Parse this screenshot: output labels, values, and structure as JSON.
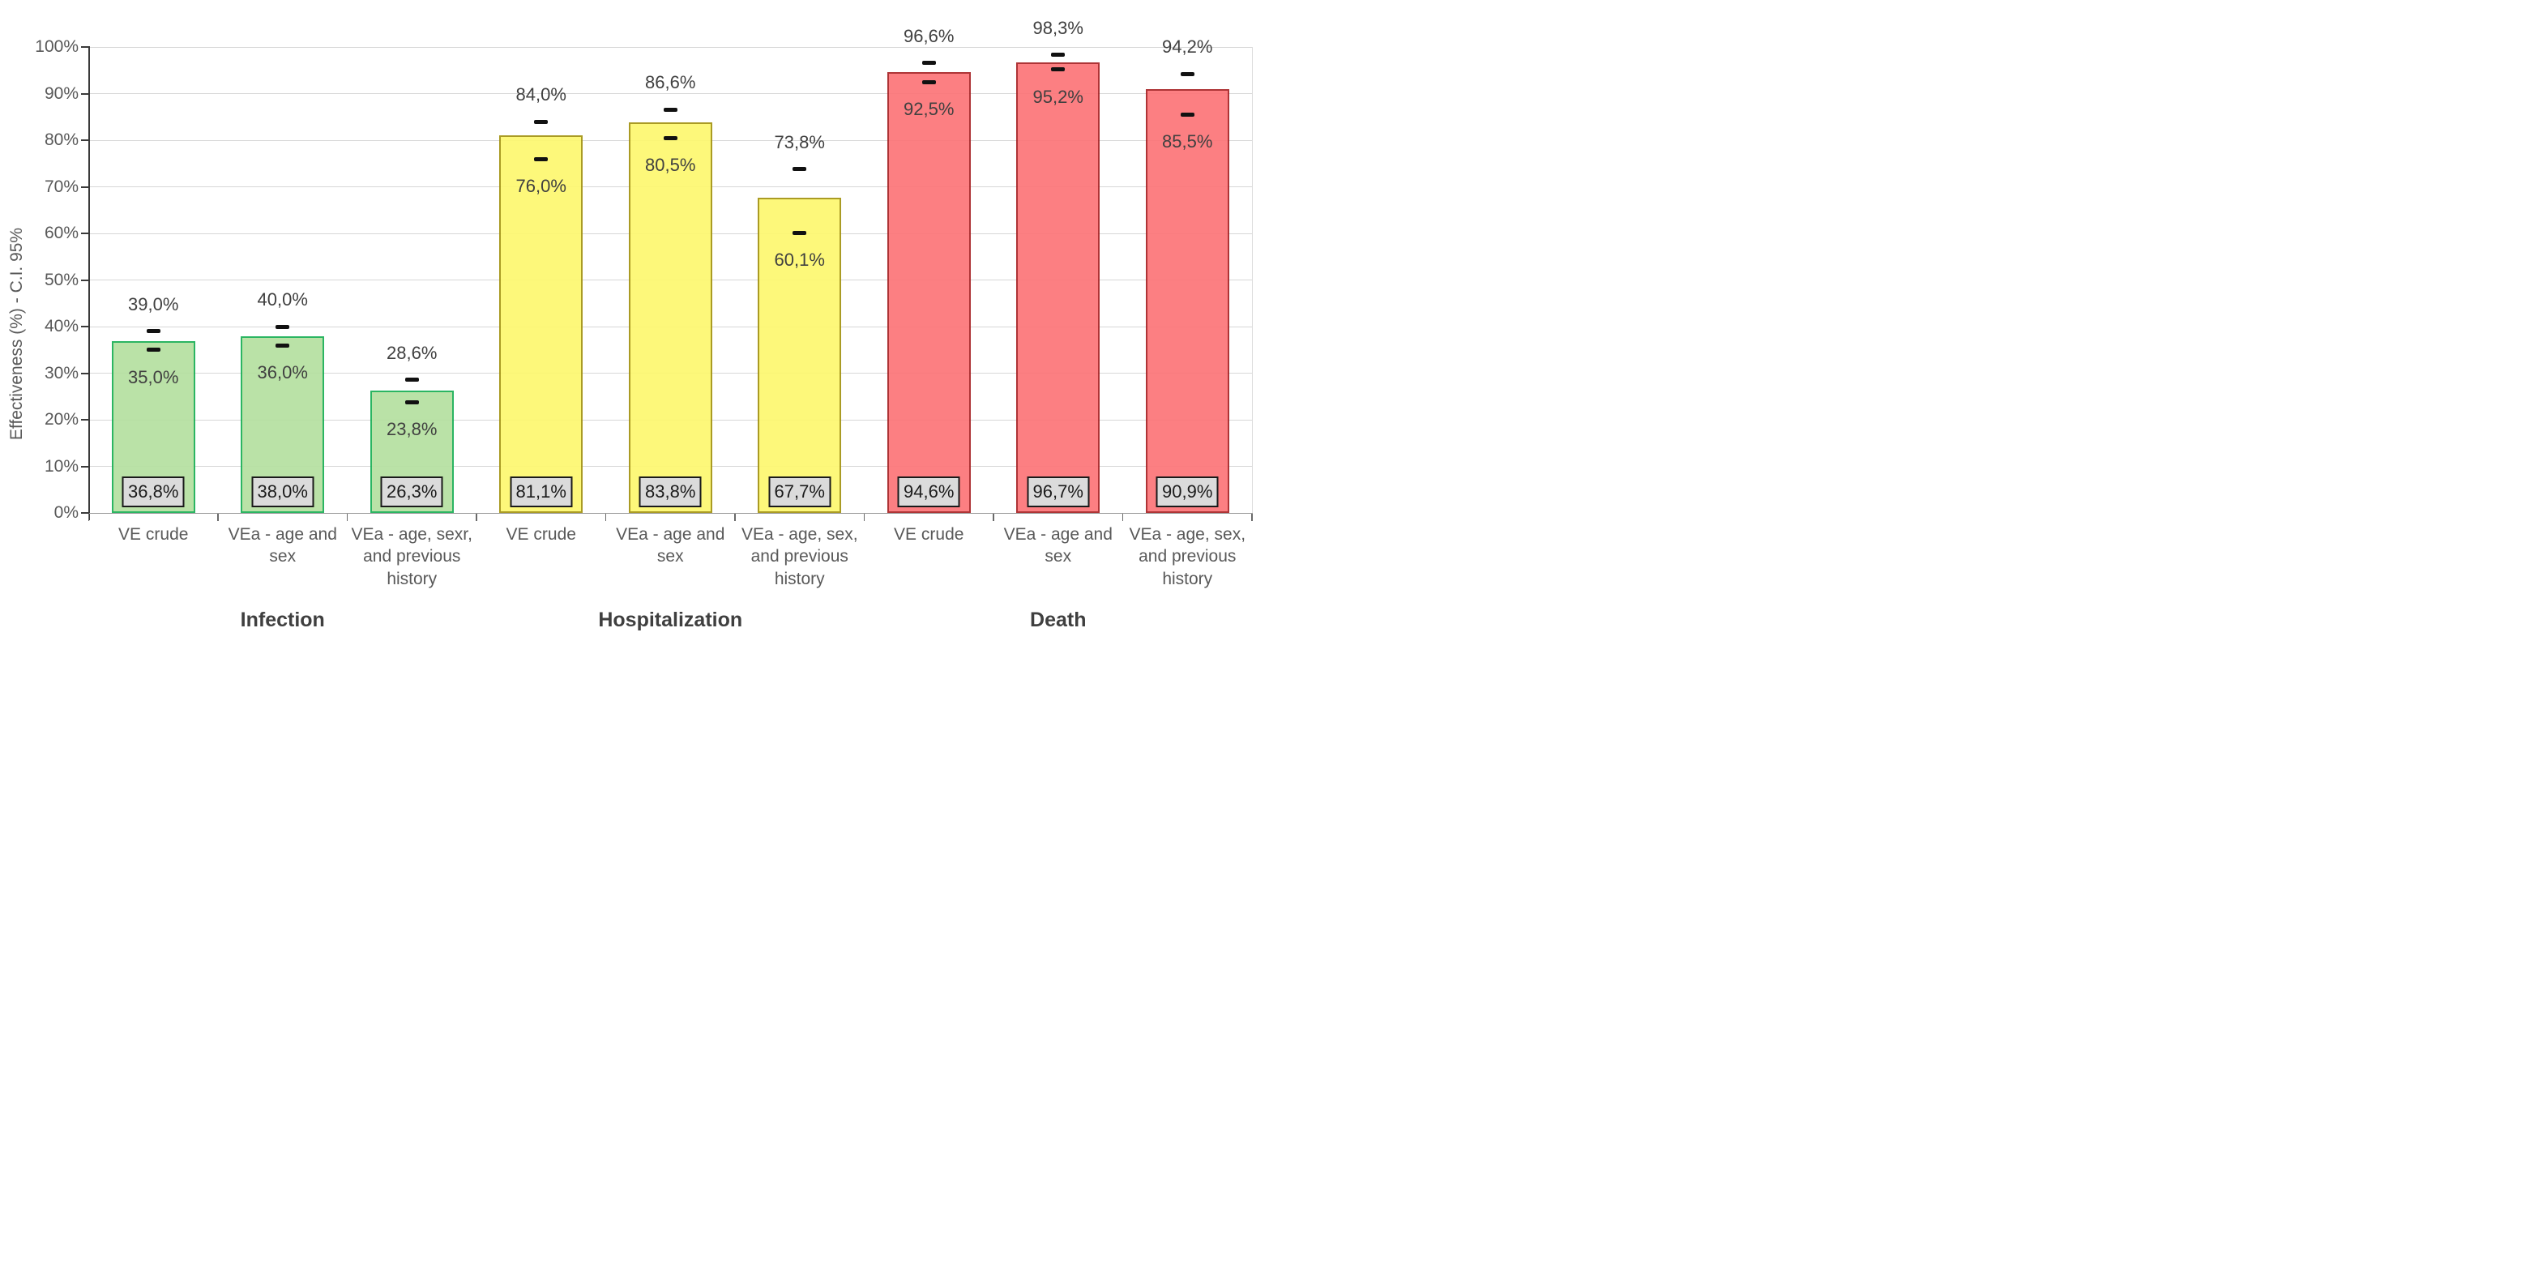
{
  "chart_data": {
    "type": "bar",
    "title": "",
    "ylabel": "Effectiveness (%) - C.I. 95%",
    "ylim": [
      0,
      100
    ],
    "ytick_step": 10,
    "grid": true,
    "legend": "none",
    "decimal_separator": ",",
    "error_bars": "95% confidence interval dashes above and below each bar top",
    "y_ticks": [
      {
        "value": 0,
        "label": "0%"
      },
      {
        "value": 10,
        "label": "10%"
      },
      {
        "value": 20,
        "label": "20%"
      },
      {
        "value": 30,
        "label": "30%"
      },
      {
        "value": 40,
        "label": "40%"
      },
      {
        "value": 50,
        "label": "50%"
      },
      {
        "value": 60,
        "label": "60%"
      },
      {
        "value": 70,
        "label": "70%"
      },
      {
        "value": 80,
        "label": "80%"
      },
      {
        "value": 90,
        "label": "90%"
      },
      {
        "value": 100,
        "label": "100%"
      }
    ],
    "colors": {
      "gridline": "#d7d7d7",
      "ci_marker": "#111111",
      "value_box_fill": "#dbdbdb",
      "value_box_border": "#1a1a1a",
      "axis_text": "#595959",
      "ci_label_text": "#404040",
      "group_label_text": "#3f3f3f"
    },
    "groups": [
      {
        "label": "Infection",
        "fill": "#b5e0a0",
        "border": "#1aaf55",
        "bars": [
          {
            "category": "VE crude",
            "value": 36.8,
            "ci_low": 35.0,
            "ci_high": 39.0,
            "value_label": "36,8%",
            "ci_low_label": "35,0%",
            "ci_high_label": "39,0%"
          },
          {
            "category": "VEa - age and\nsex",
            "value": 38.0,
            "ci_low": 36.0,
            "ci_high": 40.0,
            "value_label": "38,0%",
            "ci_low_label": "36,0%",
            "ci_high_label": "40,0%"
          },
          {
            "category": "VEa - age, sexr,\nand previous\nhistory",
            "value": 26.3,
            "ci_low": 23.8,
            "ci_high": 28.6,
            "value_label": "26,3%",
            "ci_low_label": "23,8%",
            "ci_high_label": "28,6%"
          }
        ]
      },
      {
        "label": "Hospitalization",
        "fill": "#fdf86f",
        "border": "#a39312",
        "bars": [
          {
            "category": "VE crude",
            "value": 81.1,
            "ci_low": 76.0,
            "ci_high": 84.0,
            "value_label": "81,1%",
            "ci_low_label": "76,0%",
            "ci_high_label": "84,0%"
          },
          {
            "category": "VEa - age and\nsex",
            "value": 83.8,
            "ci_low": 80.5,
            "ci_high": 86.6,
            "value_label": "83,8%",
            "ci_low_label": "80,5%",
            "ci_high_label": "86,6%"
          },
          {
            "category": "VEa - age, sex,\nand previous\nhistory",
            "value": 67.7,
            "ci_low": 60.1,
            "ci_high": 73.8,
            "value_label": "67,7%",
            "ci_low_label": "60,1%",
            "ci_high_label": "73,8%"
          }
        ]
      },
      {
        "label": "Death",
        "fill": "#fc7578",
        "border": "#a82326",
        "bars": [
          {
            "category": "VE crude",
            "value": 94.6,
            "ci_low": 92.5,
            "ci_high": 96.6,
            "value_label": "94,6%",
            "ci_low_label": "92,5%",
            "ci_high_label": "96,6%"
          },
          {
            "category": "VEa - age and\nsex",
            "value": 96.7,
            "ci_low": 95.2,
            "ci_high": 98.3,
            "value_label": "96,7%",
            "ci_low_label": "95,2%",
            "ci_high_label": "98,3%"
          },
          {
            "category": "VEa - age, sex,\nand previous\nhistory",
            "value": 90.9,
            "ci_low": 85.5,
            "ci_high": 94.2,
            "value_label": "90,9%",
            "ci_low_label": "85,5%",
            "ci_high_label": "94,2%"
          }
        ]
      }
    ]
  }
}
